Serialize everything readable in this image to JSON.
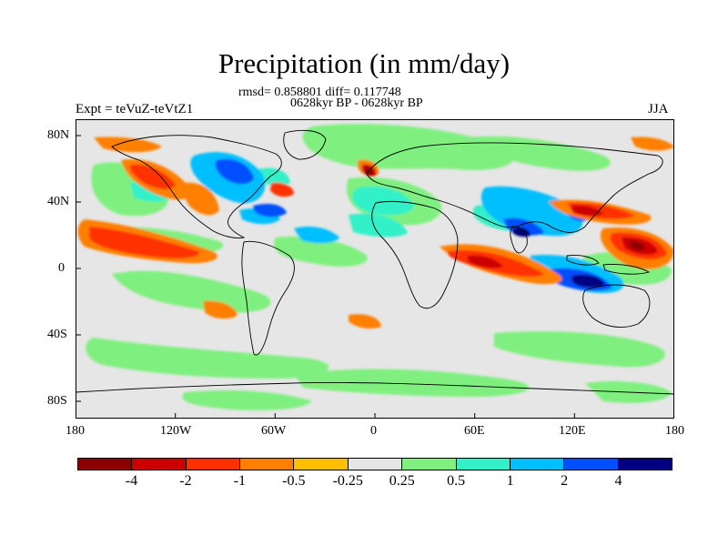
{
  "title": "Precipitation (in mm/day)",
  "stats_line": "rmsd= 0.858801 diff= 0.117748",
  "period_line": "0628kyr BP - 0628kyr BP",
  "experiment_label": "Expt = teVuZ-teVtZ1",
  "season_label": "JJA",
  "map": {
    "lat_ticks": [
      "80N",
      "40N",
      "0",
      "40S",
      "80S"
    ],
    "lon_ticks": [
      "180",
      "120W",
      "60W",
      "0",
      "60E",
      "120E",
      "180"
    ]
  },
  "colorbar": {
    "colors": [
      "#8b0000",
      "#cd0000",
      "#ff3000",
      "#ff7f00",
      "#ffbf00",
      "#e6e6e6",
      "#7ff07f",
      "#33f0c8",
      "#00bfff",
      "#0050ff",
      "#000080"
    ],
    "labels": [
      "-4",
      "-2",
      "-1",
      "-0.5",
      "-0.25",
      "0.25",
      "0.5",
      "1",
      "2",
      "4"
    ]
  }
}
